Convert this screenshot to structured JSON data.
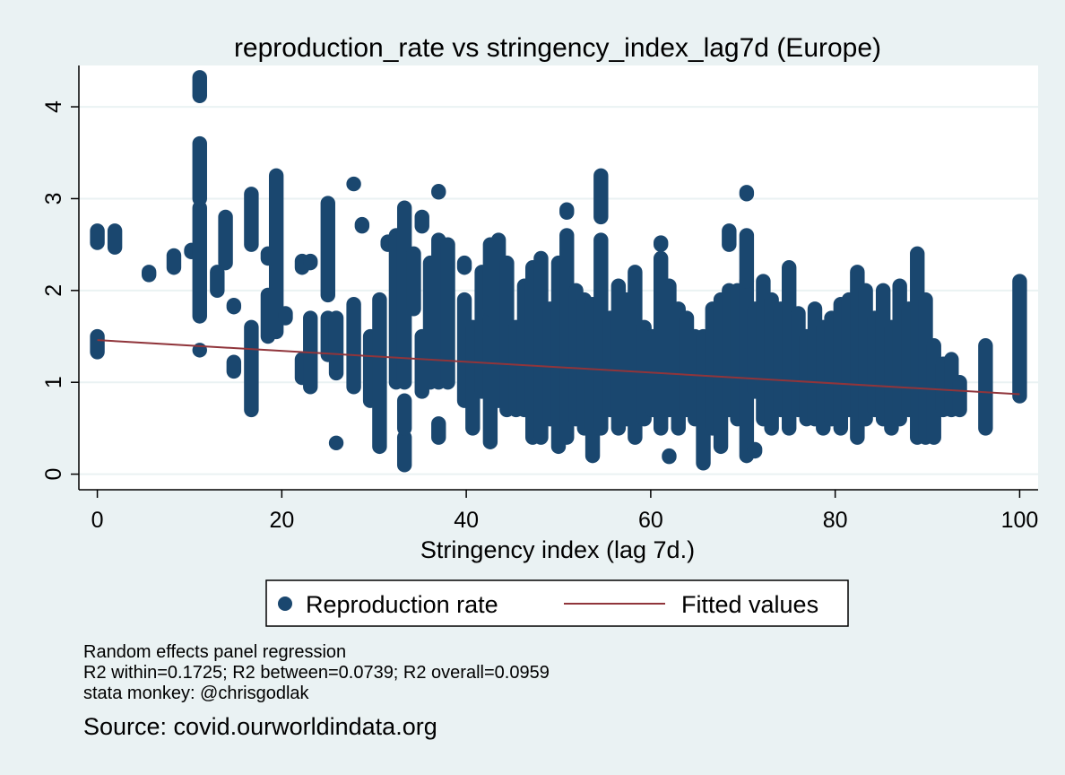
{
  "chart_data": {
    "type": "scatter",
    "title": "reproduction_rate vs stringency_index_lag7d (Europe)",
    "xlabel": "Stringency index (lag 7d.)",
    "ylabel": "",
    "xlim": [
      -2,
      102
    ],
    "ylim": [
      -0.17,
      4.45
    ],
    "xticks": [
      0,
      20,
      40,
      60,
      80,
      100
    ],
    "yticks": [
      0,
      1,
      2,
      3,
      4
    ],
    "grid": true,
    "legend_position": "bottom",
    "colors": {
      "scatter": "#1a476f",
      "fit": "#90353b",
      "plot_bg": "#ffffff",
      "page_bg": "#eaf2f3",
      "grid": "#eaf2f3"
    },
    "series": [
      {
        "name": "Reproduction rate",
        "kind": "scatter",
        "columns": [
          [
            0,
            2.52,
            2.65
          ],
          [
            0,
            1.33,
            1.5
          ],
          [
            1.9,
            2.47,
            2.65
          ],
          [
            5.6,
            2.17,
            2.2
          ],
          [
            8.3,
            2.25,
            2.38
          ],
          [
            10.2,
            2.42,
            2.44
          ],
          [
            11.1,
            1.35,
            1.35
          ],
          [
            11.1,
            1.72,
            2.9
          ],
          [
            11.1,
            3.0,
            3.6
          ],
          [
            11.1,
            4.12,
            4.32
          ],
          [
            13,
            2.0,
            2.2
          ],
          [
            13.9,
            2.3,
            2.8
          ],
          [
            14.8,
            1.12,
            1.22
          ],
          [
            14.8,
            1.82,
            1.84
          ],
          [
            16.7,
            0.7,
            1.6
          ],
          [
            16.7,
            2.5,
            3.05
          ],
          [
            18.5,
            1.5,
            1.95
          ],
          [
            18.5,
            2.35,
            2.4
          ],
          [
            19.4,
            1.55,
            3.25
          ],
          [
            20.4,
            1.7,
            1.75
          ],
          [
            22.2,
            1.05,
            1.25
          ],
          [
            22.2,
            2.25,
            2.32
          ],
          [
            23.1,
            2.3,
            2.32
          ],
          [
            23.1,
            0.95,
            1.7
          ],
          [
            25,
            1.3,
            1.7
          ],
          [
            25,
            1.95,
            2.95
          ],
          [
            25.9,
            0.34,
            0.34
          ],
          [
            25.9,
            1.1,
            1.7
          ],
          [
            27.8,
            3.16,
            3.16
          ],
          [
            27.8,
            0.95,
            1.85
          ],
          [
            28.7,
            2.7,
            2.72
          ],
          [
            29.6,
            0.8,
            1.5
          ],
          [
            30.6,
            0.3,
            1.9
          ],
          [
            31.5,
            2.5,
            2.53
          ],
          [
            32.4,
            1.0,
            2.6
          ],
          [
            33.3,
            0.1,
            0.4
          ],
          [
            33.3,
            1.0,
            2.9
          ],
          [
            33.3,
            0.5,
            0.8
          ],
          [
            34.3,
            1.8,
            2.4
          ],
          [
            35.2,
            0.9,
            1.5
          ],
          [
            35.2,
            2.7,
            2.8
          ],
          [
            36.1,
            1.0,
            2.3
          ],
          [
            37.0,
            0.4,
            0.55
          ],
          [
            37.0,
            1.0,
            2.55
          ],
          [
            37.0,
            3.07,
            3.08
          ],
          [
            38.0,
            1.0,
            2.5
          ],
          [
            39.8,
            0.8,
            1.9
          ],
          [
            39.8,
            2.25,
            2.3
          ],
          [
            40.7,
            0.5,
            1.6
          ],
          [
            41.7,
            0.9,
            2.2
          ],
          [
            42.6,
            0.35,
            1.7
          ],
          [
            42.6,
            1.8,
            2.5
          ],
          [
            43.5,
            0.8,
            2.55
          ],
          [
            44.4,
            0.7,
            2.3
          ],
          [
            45.4,
            0.7,
            1.6
          ],
          [
            46.3,
            0.7,
            2.05
          ],
          [
            47.2,
            0.4,
            2.25
          ],
          [
            48.1,
            0.4,
            2.35
          ],
          [
            49.1,
            0.6,
            1.8
          ],
          [
            50.0,
            0.3,
            2.3
          ],
          [
            50.9,
            0.4,
            2.6
          ],
          [
            50.9,
            2.85,
            2.88
          ],
          [
            51.9,
            0.6,
            2.0
          ],
          [
            52.8,
            0.5,
            1.9
          ],
          [
            53.7,
            0.2,
            1.85
          ],
          [
            54.6,
            0.5,
            2.55
          ],
          [
            54.6,
            2.8,
            3.25
          ],
          [
            55.6,
            0.7,
            1.7
          ],
          [
            56.5,
            0.5,
            2.05
          ],
          [
            57.4,
            0.6,
            1.9
          ],
          [
            58.3,
            0.4,
            2.2
          ],
          [
            59.3,
            0.6,
            1.6
          ],
          [
            60.2,
            0.7,
            1.5
          ],
          [
            61.1,
            0.5,
            2.35
          ],
          [
            61.1,
            2.5,
            2.52
          ],
          [
            62.0,
            0.19,
            0.2
          ],
          [
            62.0,
            0.7,
            2.05
          ],
          [
            63.0,
            0.5,
            1.8
          ],
          [
            63.9,
            0.7,
            1.7
          ],
          [
            64.8,
            0.6,
            1.5
          ],
          [
            65.7,
            0.12,
            1.5
          ],
          [
            66.7,
            0.5,
            1.8
          ],
          [
            67.6,
            0.3,
            1.9
          ],
          [
            68.5,
            0.7,
            2.0
          ],
          [
            68.5,
            2.5,
            2.65
          ],
          [
            69.4,
            0.6,
            2.0
          ],
          [
            70.4,
            0.2,
            2.1
          ],
          [
            70.4,
            2.1,
            2.6
          ],
          [
            70.4,
            3.05,
            3.07
          ],
          [
            71.3,
            0.25,
            0.27
          ],
          [
            71.3,
            0.9,
            1.8
          ],
          [
            72.2,
            0.6,
            2.1
          ],
          [
            73.1,
            0.5,
            1.9
          ],
          [
            74.1,
            0.7,
            1.8
          ],
          [
            75.0,
            0.5,
            2.25
          ],
          [
            76.0,
            0.7,
            1.75
          ],
          [
            76.9,
            0.6,
            1.5
          ],
          [
            77.8,
            0.6,
            1.8
          ],
          [
            78.7,
            0.5,
            1.6
          ],
          [
            79.6,
            0.6,
            1.7
          ],
          [
            80.6,
            0.5,
            1.85
          ],
          [
            81.5,
            0.7,
            1.9
          ],
          [
            82.4,
            0.4,
            2.2
          ],
          [
            83.3,
            0.6,
            2.0
          ],
          [
            84.3,
            0.7,
            1.7
          ],
          [
            85.2,
            0.6,
            2.0
          ],
          [
            86.1,
            0.5,
            1.6
          ],
          [
            87.0,
            0.6,
            2.05
          ],
          [
            88.0,
            0.7,
            1.8
          ],
          [
            88.9,
            0.4,
            2.4
          ],
          [
            89.8,
            0.4,
            1.9
          ],
          [
            90.7,
            0.4,
            1.4
          ],
          [
            91.7,
            0.7,
            1.2
          ],
          [
            92.6,
            0.7,
            1.25
          ],
          [
            93.5,
            0.7,
            1.0
          ],
          [
            96.3,
            0.5,
            1.4
          ],
          [
            100,
            0.85,
            2.1
          ]
        ]
      },
      {
        "name": "Fitted values",
        "kind": "line",
        "x": [
          0,
          100
        ],
        "y": [
          1.46,
          0.87
        ]
      }
    ]
  },
  "notes": {
    "method": "Random effects panel regression",
    "r2": "R2 within=0.1725; R2 between=0.0739; R2 overall=0.0959",
    "credit": "stata monkey: @chrisgodlak",
    "source": "Source: covid.ourworldindata.org"
  }
}
